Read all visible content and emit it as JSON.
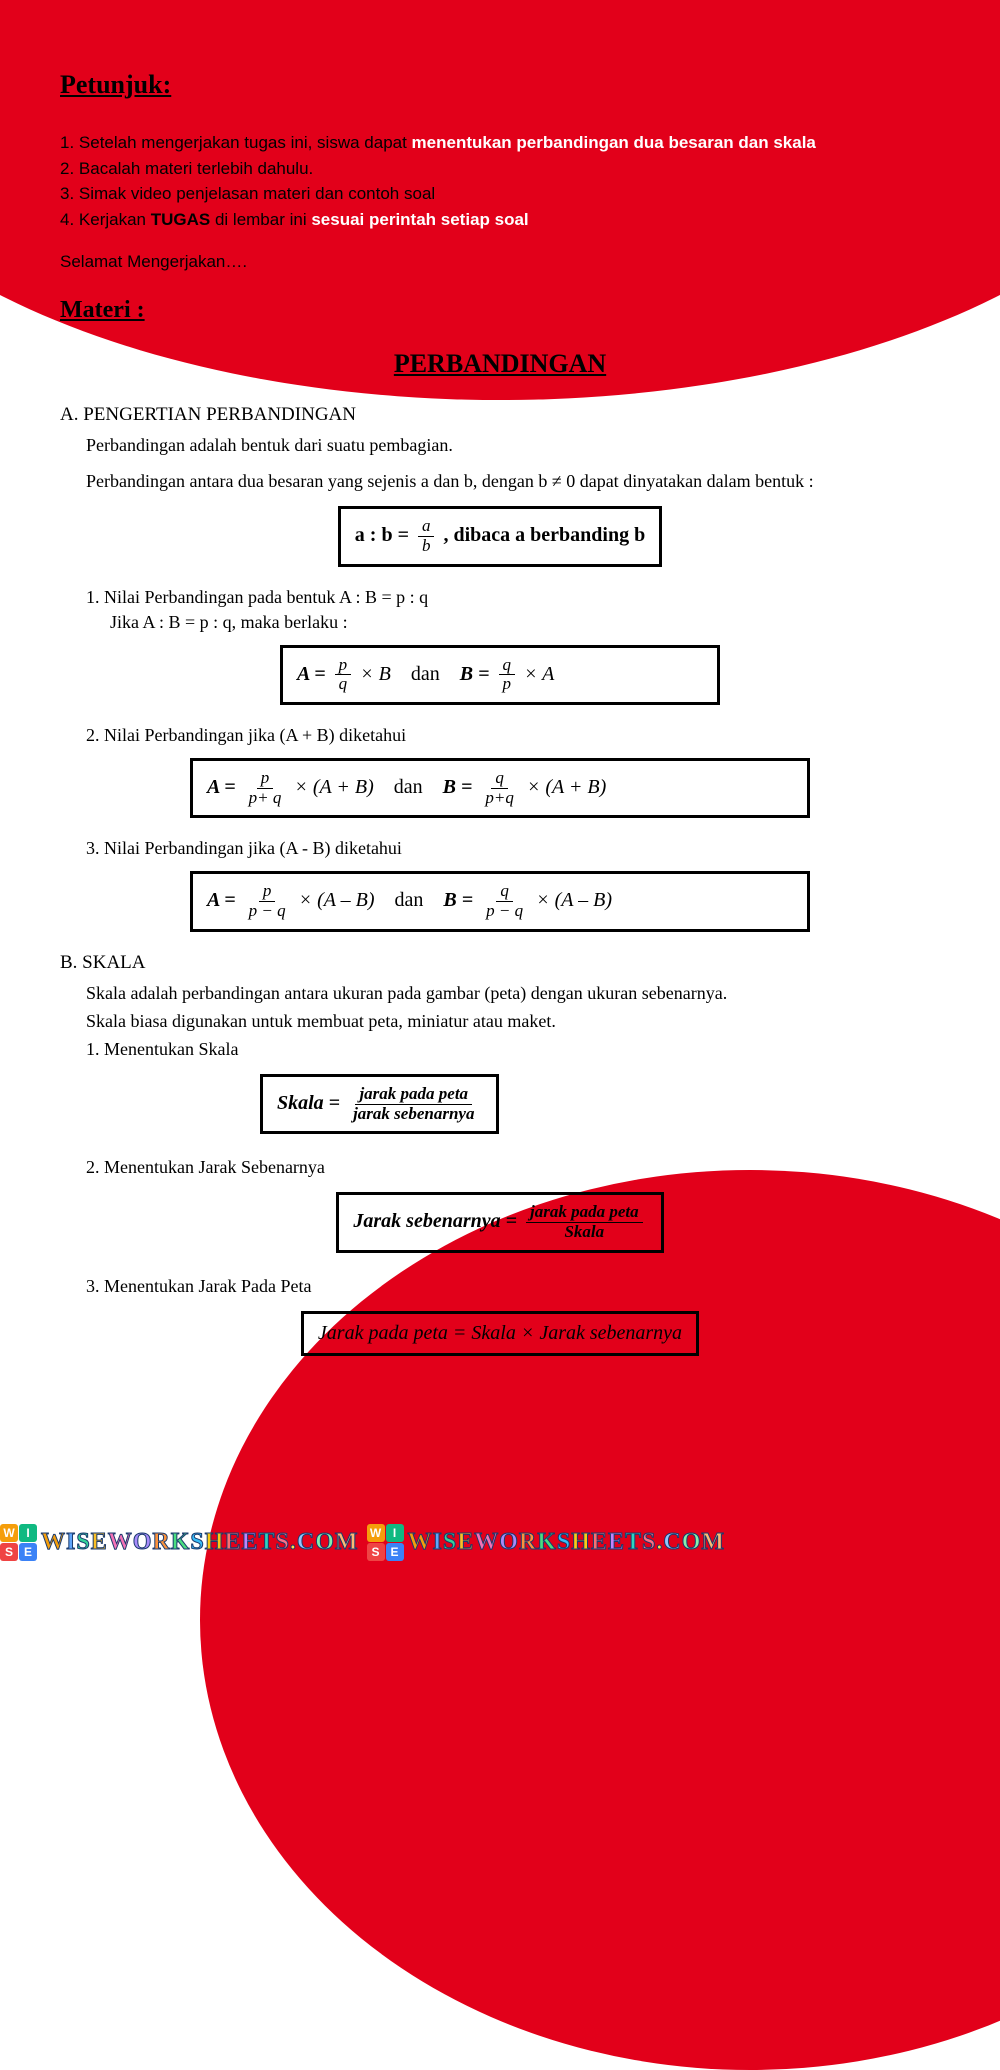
{
  "colors": {
    "red": "#e2001a",
    "black": "#000000",
    "white": "#ffffff"
  },
  "petunjuk": {
    "title": "Petunjuk:",
    "items": [
      {
        "pre": "1.   Setelah mengerjakan tugas ini, siswa dapat ",
        "highlight": "menentukan perbandingan dua besaran dan skala"
      },
      {
        "pre": "2.   Bacalah materi terlebih dahulu."
      },
      {
        "pre": "3.   Simak video penjelasan materi dan contoh soal"
      },
      {
        "pre": "4.   Kerjakan ",
        "bold": "TUGAS",
        "post": " di lembar ini ",
        "highlight2": "sesuai perintah setiap soal"
      }
    ],
    "closing": "Selamat Mengerjakan…."
  },
  "materi": {
    "label": "Materi :",
    "title": "PERBANDINGAN"
  },
  "sectionA": {
    "head": "A. PENGERTIAN PERBANDINGAN",
    "p1": "Perbandingan adalah bentuk dari suatu pembagian.",
    "p2": "Perbandingan antara dua besaran yang sejenis a dan b, dengan b ≠ 0 dapat dinyatakan dalam bentuk :",
    "box1_left": "a : b = ",
    "box1_right": " , dibaca a berbanding b",
    "frac_a": "a",
    "frac_b": "b",
    "item1": "1.   Nilai Perbandingan pada bentuk A : B = p : q",
    "item1_sub": "Jika A : B = p : q, maka berlaku :",
    "item2": "2.   Nilai Perbandingan jika (A + B) diketahui",
    "item3": "3.   Nilai Perbandingan jika (A - B) diketahui",
    "dan": "dan",
    "A_eq": "A  = ",
    "B_eq": "B  = ",
    "times_B": " × B",
    "times_A": " × A",
    "times_AB_plus": " × (A + B)",
    "times_AB_minus": " × (A – B)",
    "p": "p",
    "q": "q",
    "p_plus_q": "p+ q",
    "p_plus_q2": "p+q",
    "p_minus_q": "p − q"
  },
  "sectionB": {
    "head": "B. SKALA",
    "p1": "Skala adalah perbandingan antara ukuran pada gambar (peta) dengan ukuran sebenarnya.",
    "p2": "Skala biasa digunakan untuk membuat peta, miniatur atau maket.",
    "item1": "1.   Menentukan Skala",
    "item2": "2.   Menentukan Jarak Sebenarnya",
    "item3": "3.   Menentukan Jarak Pada Peta",
    "skala_eq": "Skala = ",
    "jarak_peta": "jarak pada peta",
    "jarak_seb": "jarak sebenarnya",
    "jarak_seb_eq": "Jarak sebenarnya = ",
    "skala_word": "Skala",
    "box3": "Jarak pada peta = Skala × Jarak sebenarnya"
  },
  "watermark": {
    "letters": [
      "W",
      "I",
      "S",
      "E"
    ],
    "cell_colors": [
      "#f59e0b",
      "#10b981",
      "#ef4444",
      "#3b82f6"
    ],
    "text": "WISEWORKSHEETS.COM",
    "text_colors": [
      "#f59e0b",
      "#60a5fa",
      "#34d399",
      "#fbbf24",
      "#f472b6",
      "#a78bfa",
      "#fb923c",
      "#4ade80",
      "#38bdf8",
      "#facc15",
      "#f87171",
      "#c084fc",
      "#2dd4bf",
      "#fb7185",
      "#fde047",
      "#93c5fd",
      "#86efac",
      "#fdba74",
      "#f0abfc",
      "#5eead4"
    ]
  }
}
